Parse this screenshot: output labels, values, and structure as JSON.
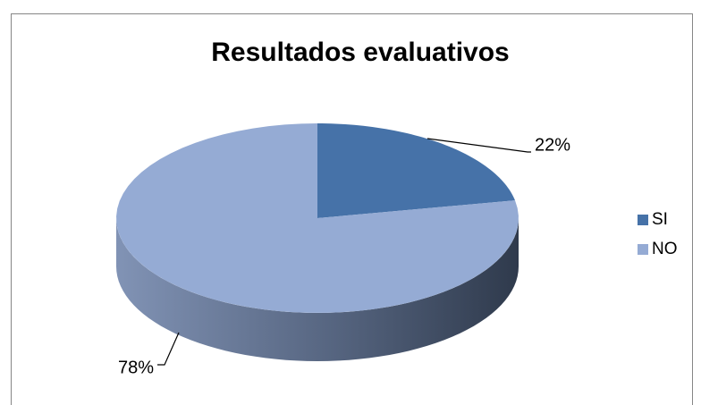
{
  "chart_data": {
    "type": "pie",
    "title": "Resultados evaluativos",
    "categories": [
      "SI",
      "NO"
    ],
    "values": [
      22,
      78
    ],
    "value_labels": [
      "22%",
      "78%"
    ],
    "colors": [
      "#4672a8",
      "#95abd4"
    ],
    "legend": "right"
  }
}
